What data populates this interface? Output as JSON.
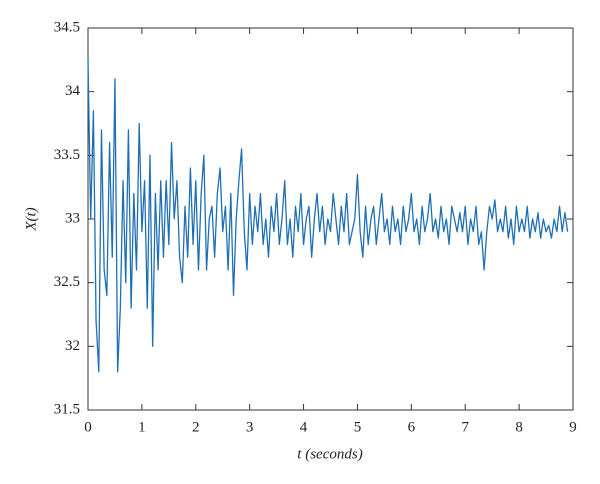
{
  "chart_data": {
    "type": "line",
    "xlabel": "t (seconds)",
    "ylabel": "X(t)",
    "xlim": [
      0,
      9
    ],
    "ylim": [
      31.5,
      34.5
    ],
    "xticks": [
      0,
      1,
      2,
      3,
      4,
      5,
      6,
      7,
      8,
      9
    ],
    "yticks": [
      31.5,
      32,
      32.5,
      33,
      33.5,
      34,
      34.5
    ],
    "grid": false,
    "x": [
      0,
      0.05,
      0.1,
      0.15,
      0.2,
      0.25,
      0.3,
      0.35,
      0.4,
      0.45,
      0.5,
      0.55,
      0.6,
      0.65,
      0.7,
      0.75,
      0.8,
      0.85,
      0.9,
      0.95,
      1,
      1.05,
      1.1,
      1.15,
      1.2,
      1.25,
      1.3,
      1.35,
      1.4,
      1.45,
      1.5,
      1.55,
      1.6,
      1.65,
      1.7,
      1.75,
      1.8,
      1.85,
      1.9,
      1.95,
      2,
      2.05,
      2.1,
      2.15,
      2.2,
      2.25,
      2.3,
      2.35,
      2.4,
      2.45,
      2.5,
      2.55,
      2.6,
      2.65,
      2.7,
      2.75,
      2.8,
      2.85,
      2.9,
      2.95,
      3,
      3.05,
      3.1,
      3.15,
      3.2,
      3.25,
      3.3,
      3.35,
      3.4,
      3.45,
      3.5,
      3.55,
      3.6,
      3.65,
      3.7,
      3.75,
      3.8,
      3.85,
      3.9,
      3.95,
      4,
      4.05,
      4.1,
      4.15,
      4.2,
      4.25,
      4.3,
      4.35,
      4.4,
      4.45,
      4.5,
      4.55,
      4.6,
      4.65,
      4.7,
      4.75,
      4.8,
      4.85,
      4.9,
      4.95,
      5,
      5.05,
      5.1,
      5.15,
      5.2,
      5.25,
      5.3,
      5.35,
      5.4,
      5.45,
      5.5,
      5.55,
      5.6,
      5.65,
      5.7,
      5.75,
      5.8,
      5.85,
      5.9,
      5.95,
      6,
      6.05,
      6.1,
      6.15,
      6.2,
      6.25,
      6.3,
      6.35,
      6.4,
      6.45,
      6.5,
      6.55,
      6.6,
      6.65,
      6.7,
      6.75,
      6.8,
      6.85,
      6.9,
      6.95,
      7,
      7.05,
      7.1,
      7.15,
      7.2,
      7.25,
      7.3,
      7.35,
      7.4,
      7.45,
      7.5,
      7.55,
      7.6,
      7.65,
      7.7,
      7.75,
      7.8,
      7.85,
      7.9,
      7.95,
      8,
      8.05,
      8.1,
      8.15,
      8.2,
      8.25,
      8.3,
      8.35,
      8.4,
      8.45,
      8.5,
      8.55,
      8.6,
      8.65,
      8.7,
      8.75,
      8.8,
      8.85,
      8.9
    ],
    "series": [
      {
        "color": "#1f6fb5",
        "values": [
          34.25,
          33.0,
          33.85,
          32.2,
          31.8,
          33.7,
          32.6,
          32.4,
          33.6,
          32.7,
          34.1,
          31.8,
          32.3,
          33.3,
          32.5,
          33.7,
          32.3,
          33.2,
          32.6,
          33.75,
          32.9,
          33.3,
          32.3,
          33.5,
          32.0,
          33.2,
          32.6,
          33.3,
          32.7,
          33.3,
          32.8,
          33.6,
          33.0,
          33.3,
          32.7,
          32.5,
          33.1,
          32.7,
          33.4,
          32.8,
          33.3,
          32.6,
          33.2,
          33.5,
          32.6,
          33.0,
          33.1,
          32.7,
          33.2,
          33.4,
          32.9,
          33.1,
          32.6,
          33.2,
          32.4,
          33.0,
          33.3,
          33.55,
          32.9,
          32.6,
          33.2,
          32.8,
          33.1,
          32.9,
          33.2,
          32.8,
          33.0,
          32.7,
          33.1,
          32.9,
          33.2,
          32.8,
          33.0,
          33.3,
          32.8,
          33.0,
          32.7,
          33.1,
          32.9,
          33.2,
          32.8,
          33.0,
          33.1,
          32.7,
          33.0,
          33.2,
          32.9,
          33.1,
          32.8,
          33.0,
          32.9,
          33.2,
          33.0,
          32.8,
          33.1,
          32.9,
          33.2,
          32.8,
          32.9,
          33.0,
          33.35,
          32.9,
          32.7,
          33.1,
          32.8,
          33.0,
          33.1,
          32.8,
          33.0,
          33.2,
          32.9,
          33.0,
          32.8,
          33.1,
          32.9,
          33.0,
          32.8,
          33.1,
          32.9,
          33.0,
          33.2,
          32.9,
          33.0,
          32.8,
          33.1,
          32.9,
          33.0,
          33.2,
          32.9,
          33.0,
          32.85,
          33.1,
          32.9,
          33.0,
          32.8,
          33.1,
          33.0,
          32.9,
          33.05,
          32.9,
          33.1,
          32.8,
          33.0,
          32.9,
          33.1,
          32.8,
          32.9,
          32.6,
          32.9,
          33.1,
          33.0,
          33.15,
          32.9,
          33.0,
          32.9,
          33.1,
          32.85,
          33.0,
          32.8,
          33.1,
          32.9,
          33.0,
          32.9,
          33.1,
          32.85,
          33.0,
          32.9,
          33.05,
          32.85,
          33.0,
          32.9,
          32.95,
          32.85,
          33.0,
          32.9,
          33.1,
          32.9,
          33.05,
          32.9
        ]
      }
    ]
  }
}
